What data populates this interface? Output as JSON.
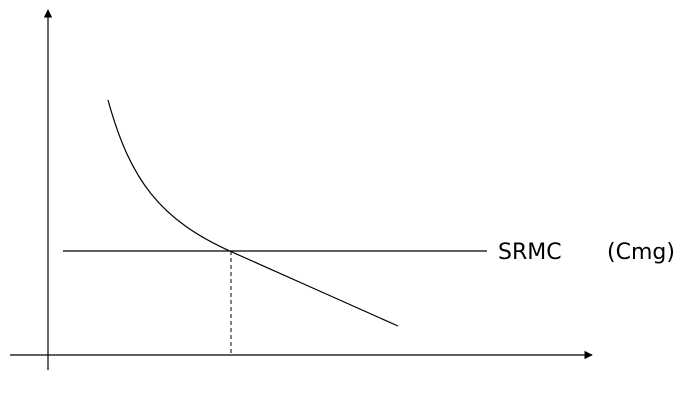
{
  "diagram": {
    "labels": {
      "horizontal_line": "SRMC",
      "horizontal_line_note": "(Cmg)"
    },
    "elements": [
      "y-axis-arrow",
      "x-axis-arrow",
      "decreasing-cost-curve",
      "srmc-horizontal-line",
      "intersection-dashed-drop-line"
    ],
    "colors": {
      "stroke": "#000000",
      "background": "#ffffff"
    }
  }
}
